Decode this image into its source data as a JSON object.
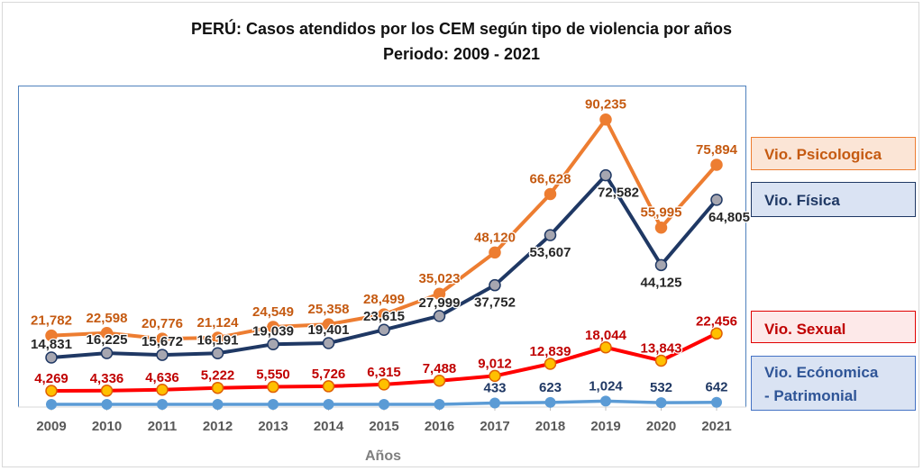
{
  "chart_data": {
    "type": "line",
    "title": "PERÚ: Casos atendidos por los CEM según tipo de violencia por años",
    "subtitle": "Periodo: 2009 - 2021",
    "xlabel": "Años",
    "ylabel": "",
    "categories": [
      "2009",
      "2010",
      "2011",
      "2012",
      "2013",
      "2014",
      "2015",
      "2016",
      "2017",
      "2018",
      "2019",
      "2020",
      "2021"
    ],
    "ylim": [
      0,
      101000
    ],
    "grid": false,
    "legend_placement": "right",
    "series": [
      {
        "name": "Vio. Psicologica",
        "color": "#ed7d31",
        "label_color": "#c55a11",
        "marker": "#ed7d31",
        "values": [
          21782,
          22598,
          20776,
          21124,
          24549,
          25358,
          28499,
          35023,
          48120,
          66628,
          90235,
          55995,
          75894
        ],
        "labels": [
          "21,782",
          "22,598",
          "20,776",
          "21,124",
          "24,549",
          "25,358",
          "28,499",
          "35,023",
          "48,120",
          "66,628",
          "90,235",
          "55,995",
          "75,894"
        ]
      },
      {
        "name": "Vio. Física",
        "color": "#1f3864",
        "label_color": "#262626",
        "marker": "#a6a6b0",
        "values": [
          14831,
          16225,
          15672,
          16191,
          19039,
          19401,
          23615,
          27999,
          37752,
          53607,
          72582,
          44125,
          64805
        ],
        "labels": [
          "14,831",
          "16,225",
          "15,672",
          "16,191",
          "19,039",
          "19,401",
          "23,615",
          "27,999",
          "37,752",
          "53,607",
          "72,582",
          "44,125",
          "64,805"
        ]
      },
      {
        "name": "Vio. Sexual",
        "color": "#ff0000",
        "label_color": "#c00000",
        "marker": "#ffc000",
        "values": [
          4269,
          4336,
          4636,
          5222,
          5550,
          5726,
          6315,
          7488,
          9012,
          12839,
          18044,
          13843,
          22456
        ],
        "labels": [
          "4,269",
          "4,336",
          "4,636",
          "5,222",
          "5,550",
          "5,726",
          "6,315",
          "7,488",
          "9,012",
          "12,839",
          "18,044",
          "13,843",
          "22,456"
        ]
      },
      {
        "name": "Vio. Ecónomica - Patrimonial",
        "name_lines": [
          "Vio. Ecónomica",
          "- Patrimonial"
        ],
        "color": "#5b9bd5",
        "label_color": "#1f3864",
        "marker": "#5b9bd5",
        "values": [
          null,
          null,
          null,
          null,
          null,
          null,
          null,
          null,
          433,
          623,
          1024,
          532,
          642
        ],
        "labels": [
          null,
          null,
          null,
          null,
          null,
          null,
          null,
          null,
          "433",
          "623",
          "1,024",
          "532",
          "642"
        ]
      }
    ]
  }
}
